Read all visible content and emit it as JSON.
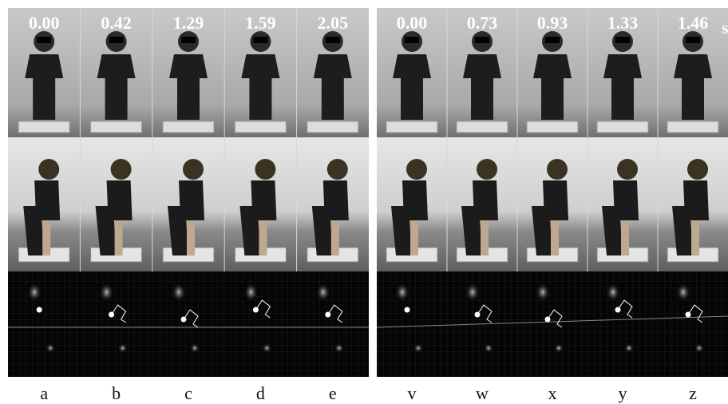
{
  "panels": [
    {
      "times": [
        "0.00",
        "0.42",
        "1.29",
        "1.59",
        "2.05"
      ],
      "labels": [
        "a",
        "b",
        "c",
        "d",
        "e"
      ]
    },
    {
      "times": [
        "0.00",
        "0.73",
        "0.93",
        "1.33",
        "1.46"
      ],
      "unit": "s",
      "labels": [
        "v",
        "w",
        "x",
        "y",
        "z"
      ]
    }
  ]
}
